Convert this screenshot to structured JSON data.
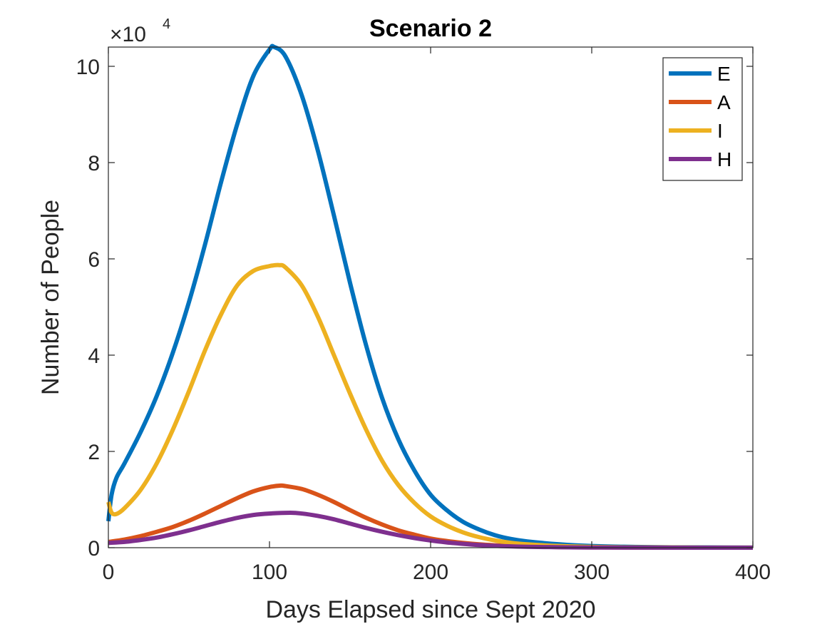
{
  "chart_data": {
    "type": "line",
    "title": "Scenario 2",
    "xlabel": "Days Elapsed since Sept 2020",
    "ylabel": "Number of People",
    "xlim": [
      0,
      400
    ],
    "ylim": [
      0,
      104000
    ],
    "xticks": [
      0,
      100,
      200,
      300,
      400
    ],
    "xtick_labels": [
      "0",
      "100",
      "200",
      "300",
      "400"
    ],
    "yticks": [
      0,
      20000,
      40000,
      60000,
      80000,
      100000
    ],
    "ytick_labels": [
      "0",
      "2",
      "4",
      "6",
      "8",
      "10"
    ],
    "y_multiplier_base": "×10",
    "y_multiplier_exp": "4",
    "grid": false,
    "legend_position": "top-right",
    "series": [
      {
        "name": "E",
        "color": "#0072BD",
        "x": [
          0,
          2,
          5,
          10,
          20,
          30,
          40,
          50,
          60,
          70,
          80,
          90,
          100,
          103,
          110,
          120,
          130,
          140,
          150,
          160,
          170,
          180,
          190,
          200,
          210,
          220,
          230,
          240,
          250,
          260,
          280,
          300,
          320,
          350,
          400
        ],
        "y": [
          5500,
          11000,
          14500,
          17500,
          24000,
          31500,
          40500,
          51000,
          63000,
          76000,
          88000,
          98000,
          103500,
          104000,
          102000,
          94000,
          82500,
          69000,
          55000,
          42000,
          31000,
          22500,
          16000,
          11000,
          7800,
          5400,
          3800,
          2600,
          1800,
          1300,
          700,
          350,
          200,
          80,
          20
        ]
      },
      {
        "name": "A",
        "color": "#D95319",
        "x": [
          0,
          10,
          20,
          30,
          40,
          50,
          60,
          70,
          80,
          90,
          100,
          107,
          110,
          120,
          130,
          140,
          150,
          160,
          170,
          180,
          190,
          200,
          210,
          220,
          230,
          240,
          250,
          260,
          280,
          300,
          320,
          350,
          400
        ],
        "y": [
          1200,
          1700,
          2400,
          3300,
          4300,
          5600,
          7100,
          8700,
          10300,
          11700,
          12600,
          12900,
          12800,
          12200,
          11000,
          9500,
          7800,
          6200,
          4800,
          3600,
          2700,
          1900,
          1400,
          1000,
          700,
          500,
          350,
          250,
          120,
          60,
          30,
          10,
          0
        ]
      },
      {
        "name": "I",
        "color": "#EDB120",
        "x": [
          0,
          2,
          5,
          10,
          20,
          30,
          40,
          50,
          60,
          70,
          80,
          90,
          100,
          106,
          110,
          120,
          130,
          140,
          150,
          160,
          170,
          180,
          190,
          200,
          210,
          220,
          230,
          240,
          250,
          260,
          280,
          300,
          320,
          350,
          400
        ],
        "y": [
          9500,
          7300,
          7000,
          8200,
          12000,
          17500,
          24500,
          32500,
          41000,
          48500,
          54500,
          57500,
          58500,
          58700,
          58200,
          54500,
          48000,
          40000,
          32000,
          24500,
          18000,
          13000,
          9300,
          6500,
          4600,
          3200,
          2200,
          1500,
          1000,
          700,
          350,
          170,
          80,
          30,
          10
        ]
      },
      {
        "name": "H",
        "color": "#7E2F8E",
        "x": [
          0,
          10,
          20,
          30,
          40,
          50,
          60,
          70,
          80,
          90,
          100,
          113,
          120,
          130,
          140,
          150,
          160,
          170,
          180,
          190,
          200,
          210,
          220,
          230,
          240,
          250,
          260,
          280,
          300,
          320,
          350,
          400
        ],
        "y": [
          1000,
          1200,
          1600,
          2100,
          2800,
          3600,
          4500,
          5400,
          6200,
          6800,
          7100,
          7250,
          7100,
          6600,
          5900,
          5000,
          4100,
          3300,
          2600,
          2000,
          1500,
          1100,
          800,
          550,
          380,
          270,
          190,
          90,
          40,
          20,
          5,
          0
        ]
      }
    ]
  }
}
